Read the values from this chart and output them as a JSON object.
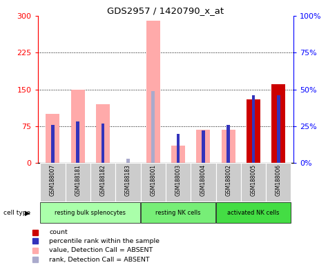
{
  "title": "GDS2957 / 1420790_x_at",
  "samples": [
    "GSM188007",
    "GSM188181",
    "GSM188182",
    "GSM188183",
    "GSM188001",
    "GSM188003",
    "GSM188004",
    "GSM188002",
    "GSM188005",
    "GSM188006"
  ],
  "value_absent": [
    100.0,
    150.0,
    120.0,
    0.0,
    290.0,
    35.0,
    68.0,
    68.0,
    0.0,
    0.0
  ],
  "rank_absent_pct": [
    25.0,
    0.0,
    26.0,
    3.0,
    49.0,
    0.0,
    0.0,
    0.0,
    0.0,
    0.0
  ],
  "count_vals": [
    0,
    0,
    0,
    0,
    0,
    0,
    0,
    0,
    130.0,
    160.0
  ],
  "percentile_pct": [
    26.0,
    28.0,
    27.0,
    0.0,
    0.0,
    20.0,
    22.0,
    26.0,
    46.0,
    46.0
  ],
  "cell_type_groups": [
    {
      "label": "resting bulk splenocytes",
      "start": 0,
      "end": 4,
      "color": "#aaffaa"
    },
    {
      "label": "resting NK cells",
      "start": 4,
      "end": 7,
      "color": "#77ee77"
    },
    {
      "label": "activated NK cells",
      "start": 7,
      "end": 10,
      "color": "#44dd44"
    }
  ],
  "legend_items": [
    {
      "label": "count",
      "color": "#cc0000"
    },
    {
      "label": "percentile rank within the sample",
      "color": "#3333bb"
    },
    {
      "label": "value, Detection Call = ABSENT",
      "color": "#ffaaaa"
    },
    {
      "label": "rank, Detection Call = ABSENT",
      "color": "#aaaacc"
    }
  ],
  "color_value_absent": "#ffaaaa",
  "color_rank_absent": "#aaaacc",
  "color_count": "#cc0000",
  "color_percentile": "#3333bb",
  "color_sample_box": "#cccccc",
  "yticks_left": [
    0,
    75,
    150,
    225,
    300
  ],
  "yticks_right": [
    0,
    25,
    50,
    75,
    100
  ],
  "ytick_right_labels": [
    "0%",
    "25%",
    "50%",
    "75%",
    "100%"
  ]
}
